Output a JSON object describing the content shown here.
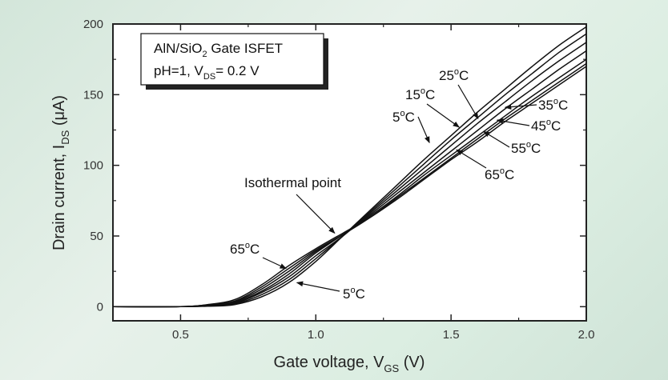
{
  "chart_data": {
    "type": "line",
    "xlabel_main": "Gate voltage, V",
    "xlabel_sub": "GS",
    "xlabel_unit": " (V)",
    "ylabel_main": "Drain current, I",
    "ylabel_sub": "DS",
    "ylabel_unit": " (μA)",
    "xlim": [
      0.25,
      2.0
    ],
    "ylim": [
      -10,
      200
    ],
    "xticks": [
      0.5,
      1.0,
      1.5,
      2.0
    ],
    "xtick_labels": [
      "0.5",
      "1.0",
      "1.5",
      "2.0"
    ],
    "yticks": [
      0,
      50,
      100,
      150,
      200
    ],
    "ytick_labels": [
      "0",
      "50",
      "100",
      "150",
      "200"
    ],
    "legend_box": {
      "line1": "AlN/SiO",
      "line1_sub": "2",
      "line1_rest": " Gate ISFET",
      "line2": "pH=1, V",
      "line2_sub": "DS",
      "line2_rest": "= 0.2 V"
    },
    "series": [
      {
        "name": "5°C",
        "x": [
          0.25,
          0.5,
          0.6,
          0.7,
          0.8,
          0.9,
          1.0,
          1.1,
          1.2,
          1.3,
          1.4,
          1.5,
          1.6,
          1.7,
          1.8,
          1.9,
          2.0
        ],
        "y": [
          0,
          0,
          0.3,
          1.5,
          7,
          17,
          32,
          50,
          68,
          86,
          104,
          121,
          138,
          154,
          170,
          185,
          198
        ]
      },
      {
        "name": "15°C",
        "x": [
          0.25,
          0.5,
          0.6,
          0.7,
          0.8,
          0.9,
          1.0,
          1.1,
          1.2,
          1.3,
          1.4,
          1.5,
          1.6,
          1.7,
          1.8,
          1.9,
          2.0
        ],
        "y": [
          0,
          0,
          0.5,
          2,
          8.5,
          19,
          34,
          50,
          67,
          84,
          101,
          118,
          134,
          150,
          165,
          180,
          193
        ]
      },
      {
        "name": "25°C",
        "x": [
          0.25,
          0.5,
          0.6,
          0.7,
          0.8,
          0.9,
          1.0,
          1.1,
          1.2,
          1.3,
          1.4,
          1.5,
          1.6,
          1.7,
          1.8,
          1.9,
          2.0
        ],
        "y": [
          0,
          0,
          0.7,
          2.5,
          10,
          21,
          36,
          50,
          66,
          82,
          98,
          114,
          130,
          145,
          160,
          174,
          187
        ]
      },
      {
        "name": "35°C",
        "x": [
          0.25,
          0.5,
          0.6,
          0.7,
          0.8,
          0.9,
          1.0,
          1.1,
          1.2,
          1.3,
          1.4,
          1.5,
          1.6,
          1.7,
          1.8,
          1.9,
          2.0
        ],
        "y": [
          0,
          0,
          0.9,
          3,
          11,
          23,
          38,
          51,
          65,
          80,
          95,
          110,
          125,
          140,
          154,
          168,
          181
        ]
      },
      {
        "name": "45°C",
        "x": [
          0.25,
          0.5,
          0.6,
          0.7,
          0.8,
          0.9,
          1.0,
          1.1,
          1.2,
          1.3,
          1.4,
          1.5,
          1.6,
          1.7,
          1.8,
          1.9,
          2.0
        ],
        "y": [
          0,
          0,
          1.1,
          3.5,
          12.5,
          25,
          39,
          51,
          64,
          78,
          93,
          107,
          121,
          135,
          149,
          162,
          175
        ]
      },
      {
        "name": "55°C",
        "x": [
          0.25,
          0.5,
          0.6,
          0.7,
          0.8,
          0.9,
          1.0,
          1.1,
          1.2,
          1.3,
          1.4,
          1.5,
          1.6,
          1.7,
          1.8,
          1.9,
          2.0
        ],
        "y": [
          0,
          0,
          1.3,
          4,
          14,
          27,
          40,
          51,
          63,
          77,
          91,
          105,
          119,
          133,
          146,
          159,
          172
        ]
      },
      {
        "name": "65°C",
        "x": [
          0.25,
          0.5,
          0.6,
          0.7,
          0.8,
          0.9,
          1.0,
          1.1,
          1.2,
          1.3,
          1.4,
          1.5,
          1.6,
          1.7,
          1.8,
          1.9,
          2.0
        ],
        "y": [
          0,
          0,
          1.5,
          5,
          15.5,
          29,
          41,
          52,
          63,
          76,
          90,
          104,
          117,
          131,
          144,
          157,
          170
        ]
      }
    ],
    "annotations": [
      {
        "id": "iso",
        "text": "Isothermal point",
        "sup": "",
        "tail": "",
        "tx": 1.07,
        "ty": 52
      },
      {
        "id": "t25",
        "text": "25",
        "sup": "o",
        "tail": "C",
        "tx": 1.6,
        "ty": 133
      },
      {
        "id": "t15",
        "text": "15",
        "sup": "o",
        "tail": "C",
        "tx": 1.53,
        "ty": 127
      },
      {
        "id": "t5",
        "text": "5",
        "sup": "o",
        "tail": "C",
        "tx": 1.42,
        "ty": 116
      },
      {
        "id": "t35",
        "text": "35",
        "sup": "o",
        "tail": "C",
        "tx": 1.7,
        "ty": 141
      },
      {
        "id": "t45",
        "text": "45",
        "sup": "o",
        "tail": "C",
        "tx": 1.67,
        "ty": 132
      },
      {
        "id": "t55",
        "text": "55",
        "sup": "o",
        "tail": "C",
        "tx": 1.62,
        "ty": 124
      },
      {
        "id": "t65h",
        "text": "65",
        "sup": "o",
        "tail": "C",
        "tx": 1.52,
        "ty": 111
      },
      {
        "id": "t65l",
        "text": "65",
        "sup": "o",
        "tail": "C",
        "tx": 0.89,
        "ty": 27
      },
      {
        "id": "t5l",
        "text": "5",
        "sup": "o",
        "tail": "C",
        "tx": 0.93,
        "ty": 17
      }
    ]
  },
  "colors": {
    "line": "#111111",
    "axis": "#222222"
  }
}
